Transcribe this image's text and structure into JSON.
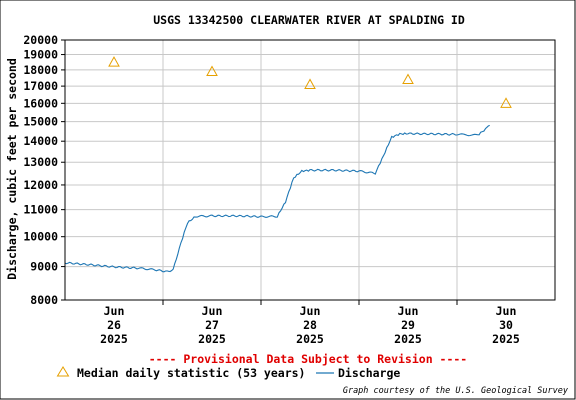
{
  "chart_data": {
    "type": "line",
    "title": "USGS 13342500 CLEARWATER RIVER AT SPALDING ID",
    "ylabel": "Discharge, cubic feet per second",
    "xlabel": "",
    "y_scale": "log",
    "ylim": [
      8000,
      20000
    ],
    "y_ticks": [
      8000,
      9000,
      10000,
      11000,
      12000,
      13000,
      14000,
      15000,
      16000,
      17000,
      18000,
      19000,
      20000
    ],
    "y_tick_labels": [
      "8000",
      "9000",
      "10000",
      "11000",
      "12000",
      "13000",
      "14000",
      "15000",
      "16000",
      "17000",
      "18000",
      "19000",
      "20000"
    ],
    "x_range": [
      "2025-06-25T12:00",
      "2025-06-30T12:00"
    ],
    "x_ticks": [
      {
        "month": "Jun",
        "day": "26",
        "year": "2025",
        "pos": "2025-06-26T00:00"
      },
      {
        "month": "Jun",
        "day": "27",
        "year": "2025",
        "pos": "2025-06-27T00:00"
      },
      {
        "month": "Jun",
        "day": "28",
        "year": "2025",
        "pos": "2025-06-28T00:00"
      },
      {
        "month": "Jun",
        "day": "29",
        "year": "2025",
        "pos": "2025-06-29T00:00"
      },
      {
        "month": "Jun",
        "day": "30",
        "year": "2025",
        "pos": "2025-06-30T00:00"
      }
    ],
    "grid": true,
    "series": [
      {
        "name": "Discharge",
        "color": "#1f77b4",
        "points": [
          [
            "2025-06-25T12:00",
            9120
          ],
          [
            "2025-06-25T18:00",
            9060
          ],
          [
            "2025-06-26T00:00",
            8990
          ],
          [
            "2025-06-26T06:00",
            8950
          ],
          [
            "2025-06-26T10:00",
            8900
          ],
          [
            "2025-06-26T13:00",
            8840
          ],
          [
            "2025-06-26T14:30",
            8900
          ],
          [
            "2025-06-26T16:00",
            9600
          ],
          [
            "2025-06-26T18:00",
            10500
          ],
          [
            "2025-06-26T20:00",
            10740
          ],
          [
            "2025-06-27T00:00",
            10760
          ],
          [
            "2025-06-27T06:00",
            10760
          ],
          [
            "2025-06-27T12:00",
            10730
          ],
          [
            "2025-06-27T16:00",
            10740
          ],
          [
            "2025-06-27T18:00",
            11300
          ],
          [
            "2025-06-27T20:00",
            12300
          ],
          [
            "2025-06-27T22:00",
            12600
          ],
          [
            "2025-06-28T00:00",
            12640
          ],
          [
            "2025-06-28T06:00",
            12640
          ],
          [
            "2025-06-28T12:00",
            12600
          ],
          [
            "2025-06-28T16:00",
            12500
          ],
          [
            "2025-06-28T18:00",
            13300
          ],
          [
            "2025-06-28T20:00",
            14200
          ],
          [
            "2025-06-28T22:00",
            14360
          ],
          [
            "2025-06-29T00:00",
            14380
          ],
          [
            "2025-06-29T06:00",
            14360
          ],
          [
            "2025-06-29T12:00",
            14340
          ],
          [
            "2025-06-29T17:00",
            14300
          ],
          [
            "2025-06-29T19:00",
            14600
          ],
          [
            "2025-06-29T20:00",
            14800
          ]
        ]
      },
      {
        "name": "Median daily statistic (53 years)",
        "color": "#e6a000",
        "marker": "triangle",
        "points": [
          [
            "2025-06-26T00:00",
            18500
          ],
          [
            "2025-06-27T00:00",
            17900
          ],
          [
            "2025-06-28T00:00",
            17100
          ],
          [
            "2025-06-29T00:00",
            17400
          ],
          [
            "2025-06-30T00:00",
            16000
          ]
        ]
      }
    ]
  },
  "provisional_note": "---- Provisional Data Subject to Revision ----",
  "legend": {
    "median_label": "Median daily statistic (53 years)",
    "discharge_label": "Discharge"
  },
  "credit": "Graph courtesy of the U.S. Geological Survey",
  "colors": {
    "discharge": "#1f77b4",
    "median": "#e6a000",
    "provisional": "#e00000",
    "grid": "#c8c8c8"
  }
}
